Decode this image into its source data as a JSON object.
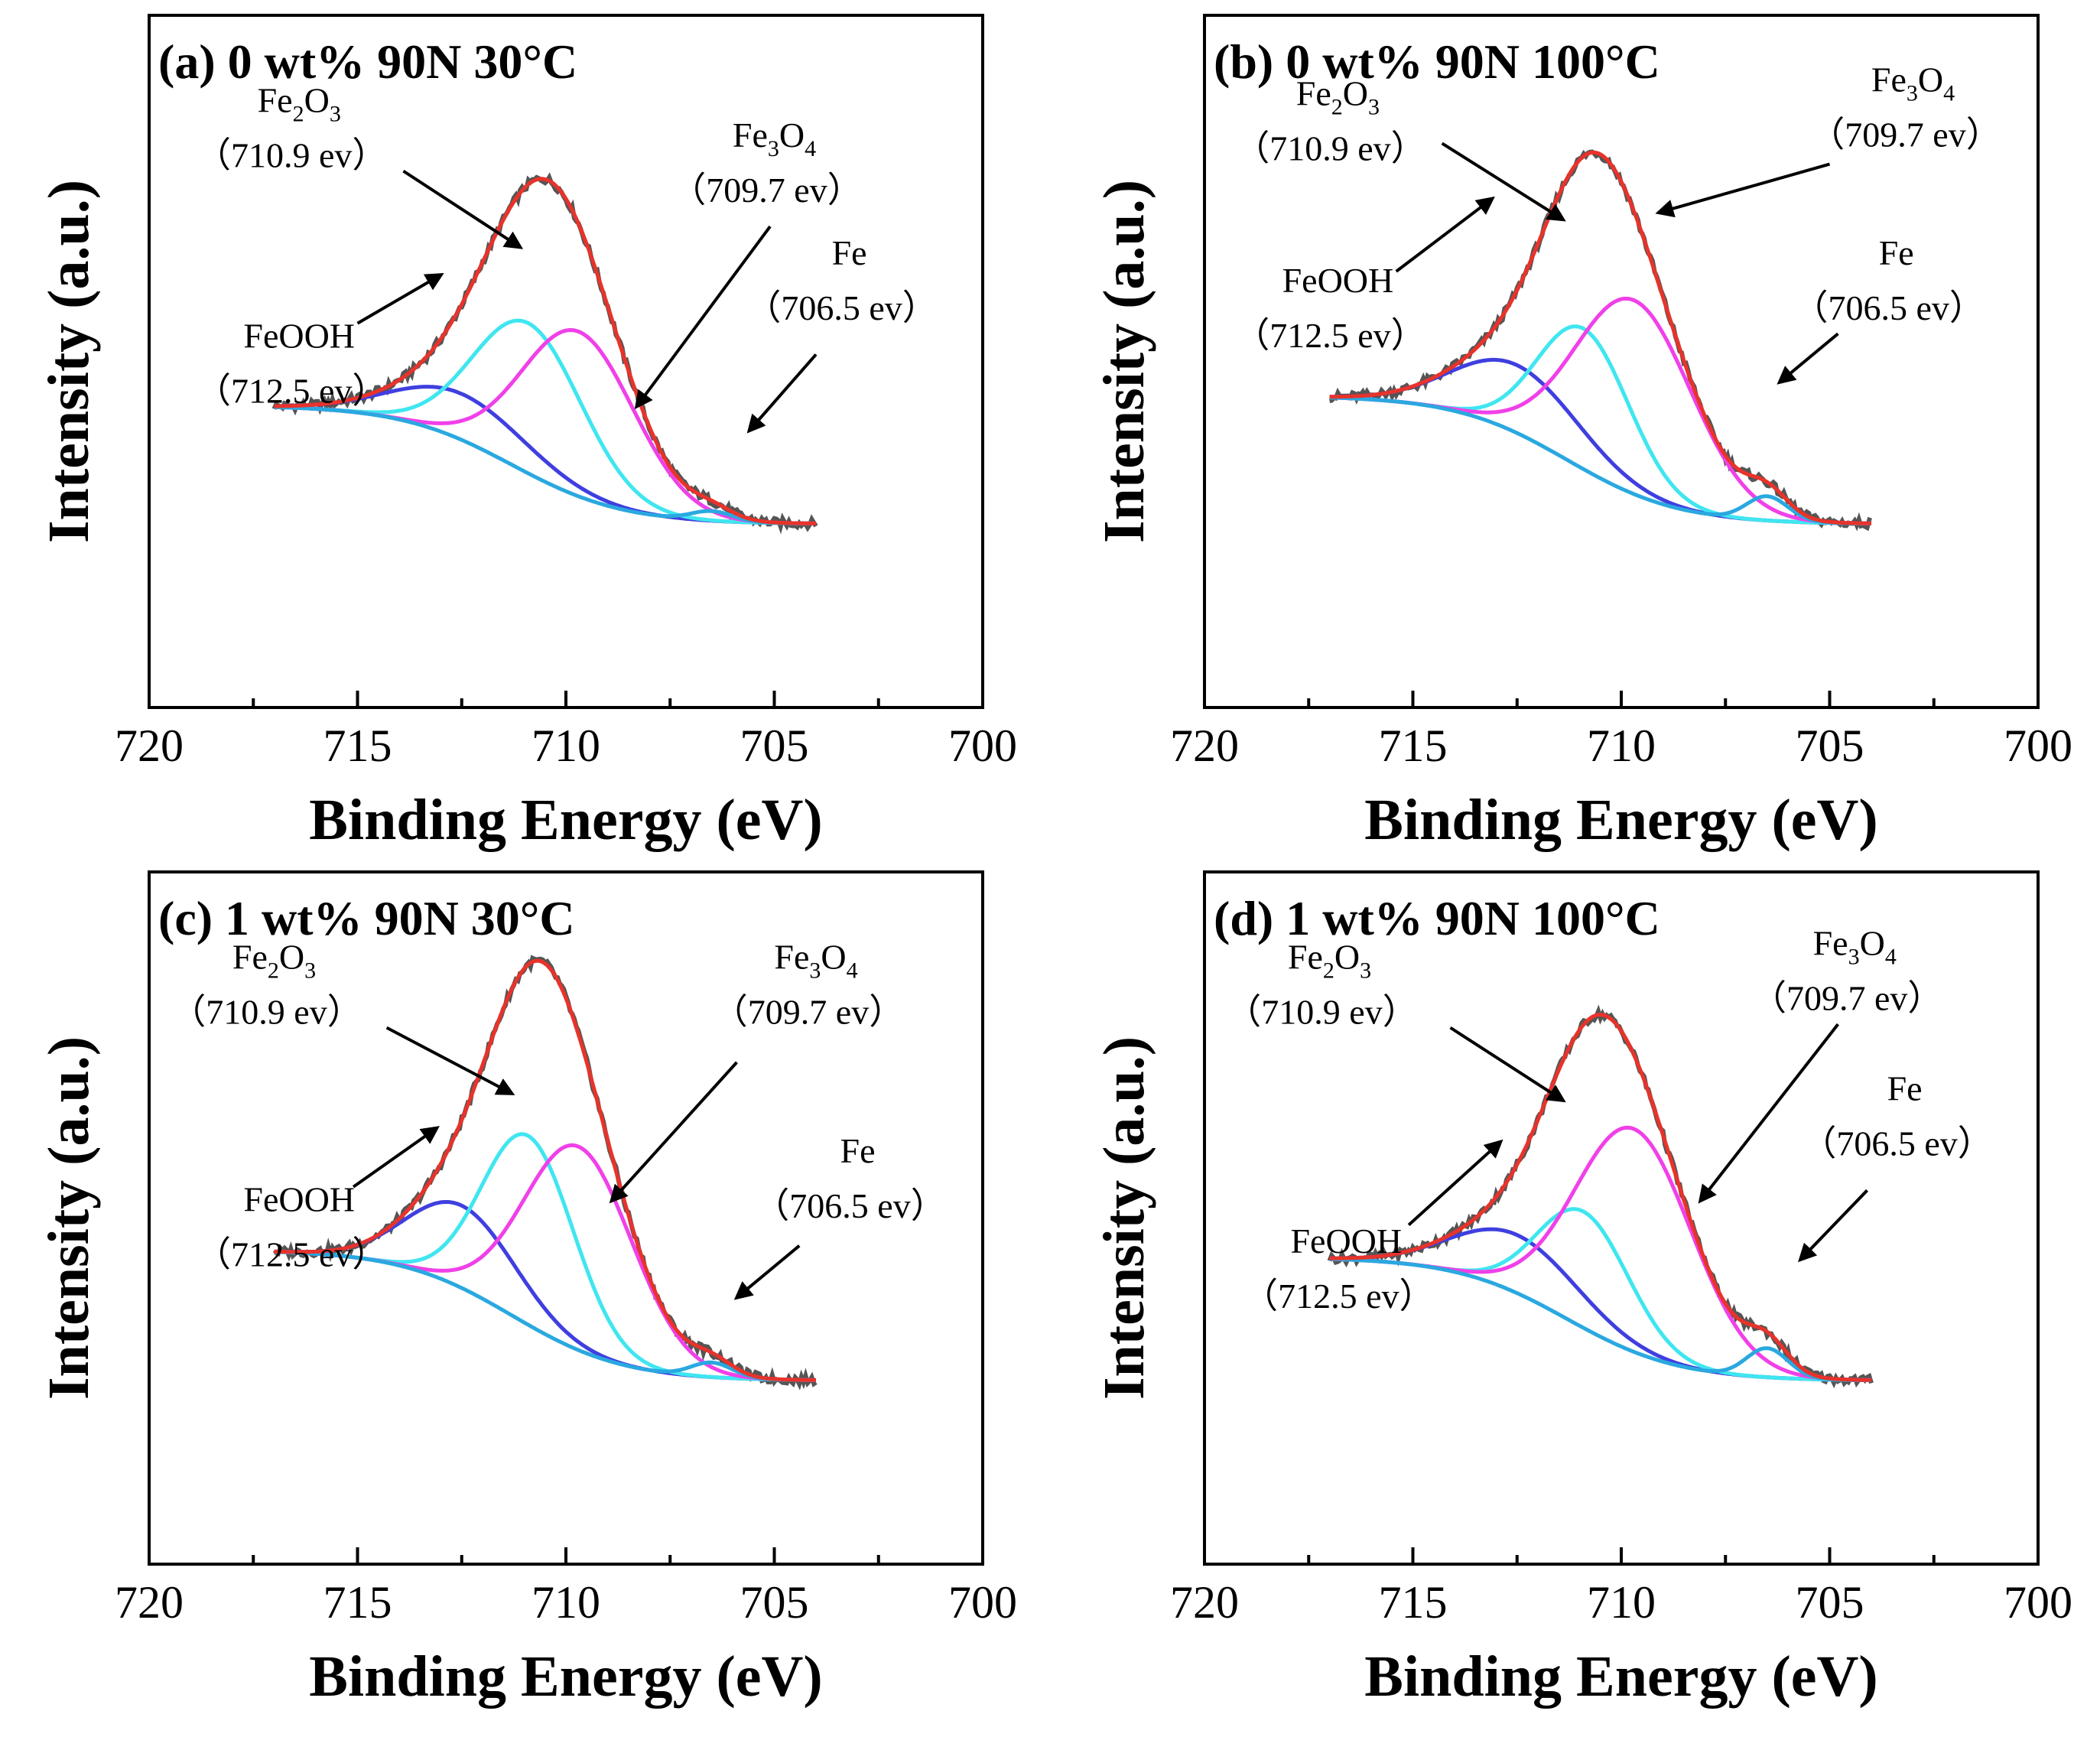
{
  "figure": {
    "component_colors": {
      "raw": "#555555",
      "envelope": "#e8332b",
      "background": "#55dd33",
      "FeOOH": "#3f3fe0",
      "Fe2O3": "#3fe6f0",
      "Fe3O4": "#f040e8",
      "Fe": "#2aa8e0"
    }
  },
  "chart_data": [
    {
      "type": "line",
      "title": "(a) 0 wt%  90N 30°C",
      "xlabel": "Binding Energy (eV)",
      "ylabel": "Intensity (a.u.)",
      "xlim": [
        720,
        700
      ],
      "xticks": [
        "720",
        "715",
        "710",
        "705",
        "700"
      ],
      "x_range": [
        717,
        704
      ],
      "baseline": [
        0.245,
        0.0
      ],
      "peaks": [
        {
          "name": "FeOOH",
          "center": 712.5,
          "height": 0.095,
          "width": 1.6
        },
        {
          "name": "Fe2O3",
          "center": 710.9,
          "height": 0.31,
          "width": 1.3
        },
        {
          "name": "Fe3O4",
          "center": 709.7,
          "height": 0.34,
          "width": 1.35
        },
        {
          "name": "Fe",
          "center": 706.5,
          "height": 0.02,
          "width": 0.5
        }
      ],
      "annotations": [
        {
          "base": "Fe",
          "sub1": "2",
          "mid": "O",
          "sub2": "3",
          "energy": "（710.9 ev）"
        },
        {
          "base": "Fe",
          "sub1": "3",
          "mid": "O",
          "sub2": "4",
          "energy": "（709.7 ev）"
        },
        {
          "base": "Fe",
          "sub1": "",
          "mid": "",
          "sub2": "",
          "energy": "（706.5 ev）"
        },
        {
          "base": "FeOOH",
          "sub1": "",
          "mid": "",
          "sub2": "",
          "energy": "（712.5 ev）"
        }
      ]
    },
    {
      "type": "line",
      "title": "(b) 0 wt%  90N 100°C",
      "xlabel": "Binding Energy (eV)",
      "ylabel": "Intensity (a.u.)",
      "xlim": [
        720,
        700
      ],
      "xticks": [
        "720",
        "715",
        "710",
        "705",
        "700"
      ],
      "x_range": [
        717,
        704
      ],
      "baseline": [
        0.265,
        0.0
      ],
      "peaks": [
        {
          "name": "FeOOH",
          "center": 712.5,
          "height": 0.14,
          "width": 1.5
        },
        {
          "name": "Fe2O3",
          "center": 710.9,
          "height": 0.29,
          "width": 1.1
        },
        {
          "name": "Fe3O4",
          "center": 709.7,
          "height": 0.4,
          "width": 1.4
        },
        {
          "name": "Fe",
          "center": 706.5,
          "height": 0.05,
          "width": 0.5
        }
      ],
      "annotations": [
        {
          "base": "Fe",
          "sub1": "2",
          "mid": "O",
          "sub2": "3",
          "energy": "（710.9 ev）"
        },
        {
          "base": "Fe",
          "sub1": "3",
          "mid": "O",
          "sub2": "4",
          "energy": "（709.7 ev）"
        },
        {
          "base": "Fe",
          "sub1": "",
          "mid": "",
          "sub2": "",
          "energy": "（706.5 ev）"
        },
        {
          "base": "FeOOH",
          "sub1": "",
          "mid": "",
          "sub2": "",
          "energy": "（712.5 ev）"
        }
      ]
    },
    {
      "type": "line",
      "title": "(c) 1 wt%  90N 30°C",
      "xlabel": "Binding Energy (eV)",
      "ylabel": "Intensity (a.u.)",
      "xlim": [
        720,
        700
      ],
      "xticks": [
        "720",
        "715",
        "710",
        "705",
        "700"
      ],
      "x_range": [
        717,
        704
      ],
      "baseline": [
        0.27,
        0.0
      ],
      "peaks": [
        {
          "name": "FeOOH",
          "center": 712.5,
          "height": 0.17,
          "width": 1.3
        },
        {
          "name": "Fe2O3",
          "center": 710.9,
          "height": 0.39,
          "width": 1.1
        },
        {
          "name": "Fe3O4",
          "center": 709.7,
          "height": 0.42,
          "width": 1.3
        },
        {
          "name": "Fe",
          "center": 706.5,
          "height": 0.03,
          "width": 0.5
        }
      ],
      "annotations": [
        {
          "base": "Fe",
          "sub1": "2",
          "mid": "O",
          "sub2": "3",
          "energy": "（710.9 ev）"
        },
        {
          "base": "Fe",
          "sub1": "3",
          "mid": "O",
          "sub2": "4",
          "energy": "（709.7 ev）"
        },
        {
          "base": "Fe",
          "sub1": "",
          "mid": "",
          "sub2": "",
          "energy": "（706.5 ev）"
        },
        {
          "base": "FeOOH",
          "sub1": "",
          "mid": "",
          "sub2": "",
          "energy": "（712.5 ev）"
        }
      ]
    },
    {
      "type": "line",
      "title": "(d) 1 wt%  90N 100°C",
      "xlabel": "Binding Energy (eV)",
      "ylabel": "Intensity (a.u.)",
      "xlim": [
        720,
        700
      ],
      "xticks": [
        "720",
        "715",
        "710",
        "705",
        "700"
      ],
      "x_range": [
        717,
        704
      ],
      "baseline": [
        0.255,
        0.0
      ],
      "peaks": [
        {
          "name": "FeOOH",
          "center": 712.5,
          "height": 0.12,
          "width": 1.5
        },
        {
          "name": "Fe2O3",
          "center": 710.9,
          "height": 0.24,
          "width": 1.1
        },
        {
          "name": "Fe3O4",
          "center": 709.7,
          "height": 0.46,
          "width": 1.4
        },
        {
          "name": "Fe",
          "center": 706.5,
          "height": 0.06,
          "width": 0.5
        }
      ],
      "annotations": [
        {
          "base": "Fe",
          "sub1": "2",
          "mid": "O",
          "sub2": "3",
          "energy": "（710.9 ev）"
        },
        {
          "base": "Fe",
          "sub1": "3",
          "mid": "O",
          "sub2": "4",
          "energy": "（709.7 ev）"
        },
        {
          "base": "Fe",
          "sub1": "",
          "mid": "",
          "sub2": "",
          "energy": "（706.5 ev）"
        },
        {
          "base": "FeOOH",
          "sub1": "",
          "mid": "",
          "sub2": "",
          "energy": "（712.5 ev）"
        }
      ]
    }
  ]
}
